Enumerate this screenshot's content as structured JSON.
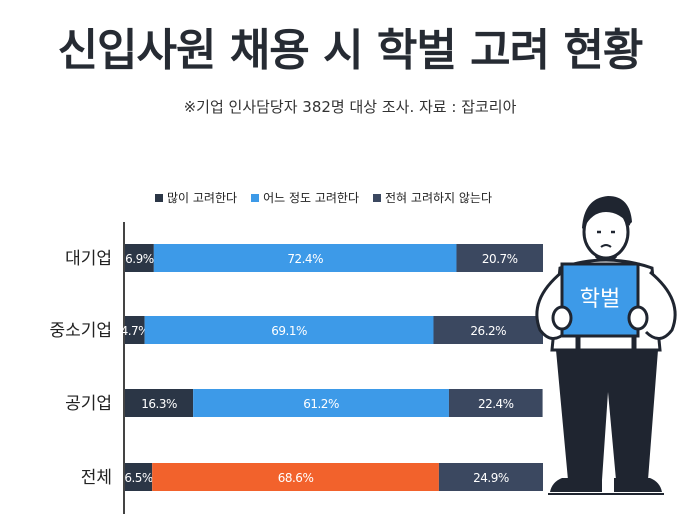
{
  "title": "신입사원 채용 시 학벌 고려 현황",
  "subtitle": "※기업 인사담당자 382명 대상 조사. 자료 : 잡코리아",
  "sign_text": "학벌",
  "colors": {
    "dark": "#2b3646",
    "blue": "#3d9ae8",
    "slate": "#3b4860",
    "highlight": "#f2622c",
    "axis": "#444444",
    "sign": "#3d9ae8"
  },
  "chart_data": {
    "type": "bar",
    "stacked": true,
    "orientation": "horizontal",
    "categories": [
      "대기업",
      "중소기업",
      "공기업",
      "전체"
    ],
    "series": [
      {
        "name": "많이 고려한다",
        "values": [
          6.9,
          4.7,
          16.3,
          6.5
        ]
      },
      {
        "name": "어느 정도 고려한다",
        "values": [
          72.4,
          69.1,
          61.2,
          68.6
        ]
      },
      {
        "name": "전혀 고려하지 않는다",
        "values": [
          20.7,
          26.2,
          22.4,
          24.9
        ]
      }
    ],
    "labels": [
      [
        "6.9%",
        "72.4%",
        "20.7%"
      ],
      [
        "4.7%",
        "69.1%",
        "26.2%"
      ],
      [
        "16.3%",
        "61.2%",
        "22.4%"
      ],
      [
        "6.5%",
        "68.6%",
        "24.9%"
      ]
    ],
    "highlight_row": 3,
    "highlight_series": 1,
    "xlim": [
      0,
      100
    ],
    "legend_position": "top"
  }
}
